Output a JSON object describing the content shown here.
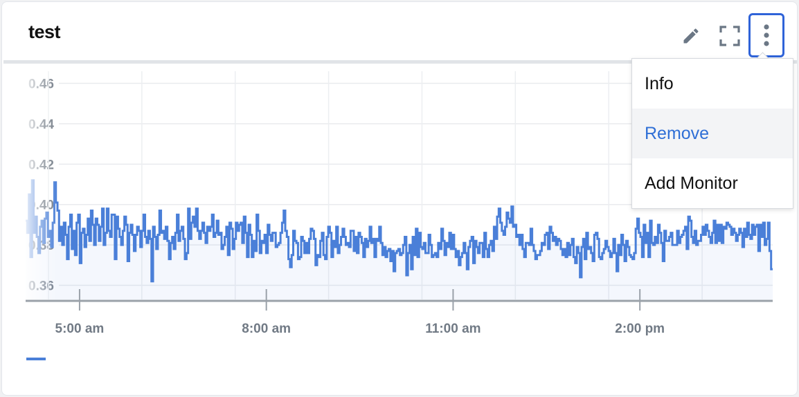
{
  "widget": {
    "title": "test",
    "actions": {
      "edit_icon": "pencil-icon",
      "fullscreen_icon": "expand-icon",
      "more_icon": "kebab-vertical-icon"
    }
  },
  "menu": {
    "items": [
      {
        "label": "Info",
        "active": false
      },
      {
        "label": "Remove",
        "active": true
      },
      {
        "label": "Add Monitor",
        "active": false
      }
    ],
    "highlight_color": "#2f6fd6"
  },
  "colors": {
    "series": "#4a7fd8",
    "accent": "#2f63d8"
  },
  "chart_data": {
    "type": "line",
    "title": "",
    "xlabel": "",
    "ylabel": "",
    "x_ticks": [
      "5:00 am",
      "8:00 am",
      "11:00 am",
      "2:00 pm"
    ],
    "y_ticks": [
      "0.46",
      "0.44",
      "0.42",
      "0.40",
      "0.38",
      "0.36"
    ],
    "ylim": [
      0.353,
      0.466
    ],
    "xlim": [
      "4:08 am",
      "4:08 pm"
    ],
    "grid": true,
    "legend": "bottom-left",
    "series": [
      {
        "values": [
          0.392,
          0.386,
          0.405,
          0.374,
          0.412,
          0.386,
          0.394,
          0.384,
          0.376,
          0.389,
          0.392,
          0.381,
          0.393,
          0.396,
          0.384,
          0.387,
          0.379,
          0.391,
          0.411,
          0.401,
          0.397,
          0.382,
          0.389,
          0.38,
          0.391,
          0.385,
          0.373,
          0.389,
          0.395,
          0.378,
          0.387,
          0.375,
          0.391,
          0.395,
          0.371,
          0.386,
          0.388,
          0.379,
          0.385,
          0.393,
          0.382,
          0.397,
          0.39,
          0.38,
          0.393,
          0.39,
          0.382,
          0.389,
          0.398,
          0.38,
          0.386,
          0.398,
          0.387,
          0.384,
          0.395,
          0.395,
          0.373,
          0.394,
          0.388,
          0.384,
          0.38,
          0.387,
          0.394,
          0.39,
          0.372,
          0.386,
          0.39,
          0.385,
          0.377,
          0.385,
          0.389,
          0.387,
          0.379,
          0.387,
          0.395,
          0.384,
          0.381,
          0.387,
          0.383,
          0.362,
          0.389,
          0.384,
          0.378,
          0.385,
          0.397,
          0.386,
          0.387,
          0.383,
          0.389,
          0.382,
          0.373,
          0.381,
          0.384,
          0.378,
          0.386,
          0.395,
          0.382,
          0.387,
          0.389,
          0.383,
          0.373,
          0.376,
          0.398,
          0.383,
          0.391,
          0.394,
          0.389,
          0.398,
          0.387,
          0.383,
          0.387,
          0.391,
          0.386,
          0.381,
          0.389,
          0.387,
          0.389,
          0.395,
          0.384,
          0.386,
          0.392,
          0.385,
          0.386,
          0.378,
          0.38,
          0.384,
          0.389,
          0.375,
          0.391,
          0.388,
          0.378,
          0.383,
          0.391,
          0.387,
          0.39,
          0.391,
          0.381,
          0.394,
          0.386,
          0.374,
          0.39,
          0.385,
          0.374,
          0.382,
          0.377,
          0.395,
          0.387,
          0.376,
          0.382,
          0.381,
          0.385,
          0.376,
          0.39,
          0.385,
          0.382,
          0.386,
          0.386,
          0.379,
          0.38,
          0.381,
          0.386,
          0.391,
          0.397,
          0.387,
          0.384,
          0.373,
          0.369,
          0.375,
          0.387,
          0.382,
          0.381,
          0.373,
          0.374,
          0.384,
          0.382,
          0.376,
          0.381,
          0.376,
          0.383,
          0.388,
          0.387,
          0.383,
          0.37,
          0.375,
          0.374,
          0.382,
          0.386,
          0.375,
          0.373,
          0.384,
          0.389,
          0.386,
          0.374,
          0.382,
          0.379,
          0.389,
          0.376,
          0.38,
          0.384,
          0.388,
          0.384,
          0.38,
          0.381,
          0.379,
          0.387,
          0.387,
          0.377,
          0.384,
          0.376,
          0.386,
          0.384,
          0.381,
          0.374,
          0.383,
          0.379,
          0.382,
          0.389,
          0.381,
          0.383,
          0.374,
          0.383,
          0.382,
          0.389,
          0.381,
          0.375,
          0.379,
          0.374,
          0.377,
          0.378,
          0.372,
          0.377,
          0.367,
          0.376,
          0.377,
          0.378,
          0.375,
          0.376,
          0.38,
          0.384,
          0.365,
          0.376,
          0.38,
          0.368,
          0.384,
          0.375,
          0.388,
          0.374,
          0.386,
          0.379,
          0.378,
          0.381,
          0.376,
          0.376,
          0.385,
          0.38,
          0.374,
          0.375,
          0.376,
          0.374,
          0.381,
          0.378,
          0.388,
          0.382,
          0.375,
          0.381,
          0.379,
          0.386,
          0.378,
          0.385,
          0.378,
          0.374,
          0.377,
          0.37,
          0.374,
          0.376,
          0.381,
          0.376,
          0.368,
          0.379,
          0.382,
          0.384,
          0.371,
          0.382,
          0.379,
          0.376,
          0.381,
          0.381,
          0.374,
          0.386,
          0.378,
          0.374,
          0.38,
          0.382,
          0.377,
          0.389,
          0.383,
          0.394,
          0.398,
          0.391,
          0.387,
          0.385,
          0.389,
          0.396,
          0.393,
          0.391,
          0.399,
          0.389,
          0.39,
          0.384,
          0.385,
          0.38,
          0.385,
          0.378,
          0.374,
          0.381,
          0.381,
          0.38,
          0.388,
          0.38,
          0.377,
          0.373,
          0.375,
          0.375,
          0.377,
          0.381,
          0.38,
          0.385,
          0.386,
          0.378,
          0.389,
          0.386,
          0.382,
          0.384,
          0.38,
          0.383,
          0.382,
          0.378,
          0.375,
          0.378,
          0.374,
          0.381,
          0.375,
          0.38,
          0.383,
          0.374,
          0.371,
          0.379,
          0.376,
          0.364,
          0.379,
          0.383,
          0.373,
          0.386,
          0.378,
          0.379,
          0.376,
          0.372,
          0.385,
          0.386,
          0.383,
          0.374,
          0.373,
          0.376,
          0.378,
          0.382,
          0.379,
          0.377,
          0.374,
          0.376,
          0.383,
          0.376,
          0.367,
          0.38,
          0.375,
          0.385,
          0.38,
          0.372,
          0.382,
          0.379,
          0.375,
          0.374,
          0.373,
          0.376,
          0.388,
          0.393,
          0.386,
          0.384,
          0.374,
          0.39,
          0.381,
          0.386,
          0.374,
          0.392,
          0.381,
          0.38,
          0.384,
          0.381,
          0.39,
          0.386,
          0.381,
          0.372,
          0.387,
          0.382,
          0.382,
          0.384,
          0.386,
          0.38,
          0.38,
          0.38,
          0.387,
          0.381,
          0.384,
          0.385,
          0.387,
          0.389,
          0.378,
          0.394,
          0.392,
          0.384,
          0.381,
          0.387,
          0.38,
          0.382,
          0.382,
          0.385,
          0.389,
          0.385,
          0.39,
          0.387,
          0.384,
          0.381,
          0.386,
          0.392,
          0.381,
          0.39,
          0.382,
          0.39,
          0.381,
          0.389,
          0.388,
          0.391,
          0.39,
          0.389,
          0.385,
          0.388,
          0.386,
          0.382,
          0.385,
          0.388,
          0.386,
          0.379,
          0.388,
          0.384,
          0.391,
          0.385,
          0.383,
          0.39,
          0.385,
          0.389,
          0.39,
          0.377,
          0.39,
          0.384,
          0.391,
          0.38,
          0.383,
          0.391,
          0.377,
          0.368
        ]
      }
    ]
  }
}
